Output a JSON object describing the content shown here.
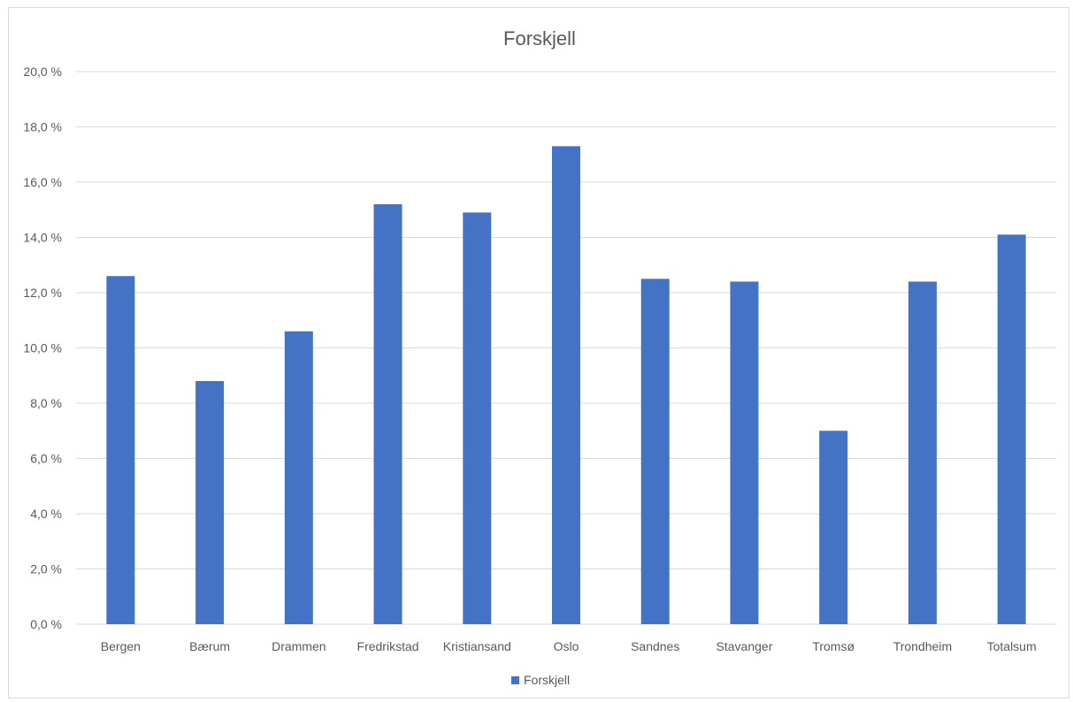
{
  "chart_data": {
    "type": "bar",
    "title": "Forskjell",
    "categories": [
      "Bergen",
      "Bærum",
      "Drammen",
      "Fredrikstad",
      "Kristiansand",
      "Oslo",
      "Sandnes",
      "Stavanger",
      "Tromsø",
      "Trondheim",
      "Totalsum"
    ],
    "series": [
      {
        "name": "Forskjell",
        "values": [
          12.6,
          8.8,
          10.6,
          15.2,
          14.9,
          17.3,
          12.5,
          12.4,
          7.0,
          12.4,
          14.1
        ],
        "color": "#4472c4"
      }
    ],
    "y_ticks": [
      "0,0 %",
      "2,0 %",
      "4,0 %",
      "6,0 %",
      "8,0 %",
      "10,0 %",
      "12,0 %",
      "14,0 %",
      "16,0 %",
      "18,0 %",
      "20,0 %"
    ],
    "ylim": [
      0,
      20
    ],
    "grid": true,
    "legend_position": "bottom"
  }
}
